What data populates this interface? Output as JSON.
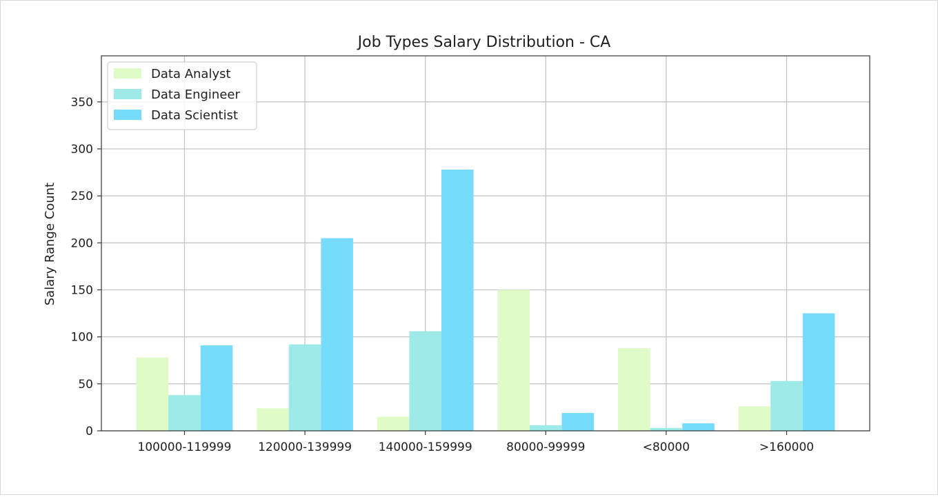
{
  "chart_data": {
    "type": "bar",
    "title": "Job Types Salary Distribution - CA",
    "xlabel": "",
    "ylabel": "Salary Range Count",
    "categories": [
      "100000-119999",
      "120000-139999",
      "140000-159999",
      "80000-99999",
      "<80000",
      ">160000"
    ],
    "series": [
      {
        "name": "Data Analyst",
        "color": "#e0fac8",
        "values": [
          78,
          24,
          15,
          150,
          88,
          26
        ]
      },
      {
        "name": "Data Engineer",
        "color": "#9eeae8",
        "values": [
          38,
          92,
          106,
          6,
          3,
          53
        ]
      },
      {
        "name": "Data Scientist",
        "color": "#77dcfb",
        "values": [
          91,
          205,
          278,
          19,
          8,
          125
        ]
      }
    ],
    "ylim": [
      0,
      399
    ],
    "yticks": [
      0,
      50,
      100,
      150,
      200,
      250,
      300,
      350
    ],
    "grid": true,
    "legend_position": "top-left"
  }
}
